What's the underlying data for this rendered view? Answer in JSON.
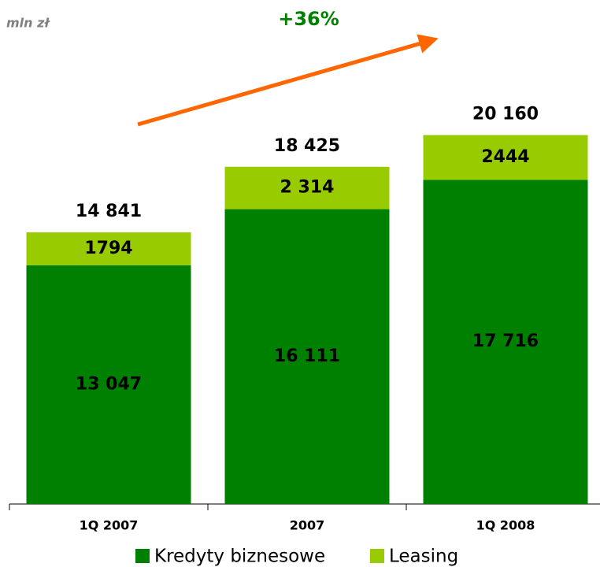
{
  "chart_data": {
    "type": "bar",
    "stacked": true,
    "unit_label": "mln zł",
    "annotation": "+36%",
    "categories": [
      "1Q 2007",
      "2007",
      "1Q 2008"
    ],
    "series": [
      {
        "name": "Kredyty biznesowe",
        "color": "#008000",
        "values": [
          13047,
          16111,
          17716
        ],
        "value_labels": [
          "13 047",
          "16 111",
          "17 716"
        ]
      },
      {
        "name": "Leasing",
        "color": "#99cc00",
        "values": [
          1794,
          2314,
          2444
        ],
        "value_labels": [
          "1794",
          "2 314",
          "2444"
        ]
      }
    ],
    "totals": [
      14841,
      18425,
      20160
    ],
    "total_labels": [
      "14 841",
      "18 425",
      "20 160"
    ],
    "ylim": [
      0,
      25000
    ]
  }
}
